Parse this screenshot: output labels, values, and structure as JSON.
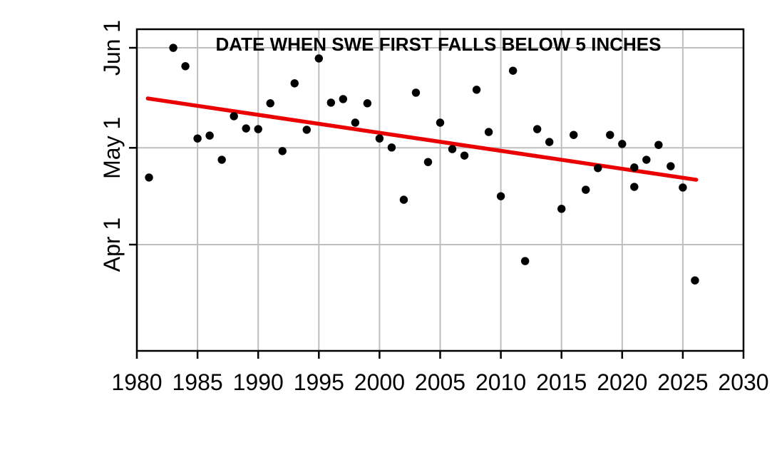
{
  "chart_data": {
    "type": "scatter",
    "title": "DATE WHEN SWE FIRST FALLS BELOW 5 INCHES",
    "x_axis": {
      "min": 1980,
      "max": 2030,
      "tick_step": 5,
      "tick_labels": [
        "1980",
        "1985",
        "1990",
        "1995",
        "2000",
        "2005",
        "2010",
        "2015",
        "2020",
        "2025",
        "2030"
      ],
      "tick_years": [
        1980,
        1985,
        1990,
        1995,
        2000,
        2005,
        2010,
        2015,
        2020,
        2025,
        2030
      ]
    },
    "y_axis": {
      "tick_labels": [
        "Jun 1",
        "May 1",
        "Apr 1"
      ],
      "tick_days_after_apr1": [
        61,
        30,
        0
      ]
    },
    "grid": true,
    "legend": "none",
    "points": [
      {
        "year": 1981,
        "days_after_apr1": 20.8,
        "date": "Apr 22"
      },
      {
        "year": 1983,
        "days_after_apr1": 61.0,
        "date": "Jun 1"
      },
      {
        "year": 1984,
        "days_after_apr1": 55.3,
        "date": "May 26"
      },
      {
        "year": 1985,
        "days_after_apr1": 32.9,
        "date": "May 4"
      },
      {
        "year": 1986,
        "days_after_apr1": 33.8,
        "date": "May 5"
      },
      {
        "year": 1987,
        "days_after_apr1": 26.3,
        "date": "Apr 27"
      },
      {
        "year": 1988,
        "days_after_apr1": 39.8,
        "date": "May 11"
      },
      {
        "year": 1989,
        "days_after_apr1": 36.0,
        "date": "May 7"
      },
      {
        "year": 1990,
        "days_after_apr1": 35.8,
        "date": "May 7"
      },
      {
        "year": 1991,
        "days_after_apr1": 43.8,
        "date": "May 15"
      },
      {
        "year": 1992,
        "days_after_apr1": 29.0,
        "date": "Apr 30"
      },
      {
        "year": 1993,
        "days_after_apr1": 50.0,
        "date": "May 21"
      },
      {
        "year": 1994,
        "days_after_apr1": 35.6,
        "date": "May 7"
      },
      {
        "year": 1995,
        "days_after_apr1": 57.7,
        "date": "May 29"
      },
      {
        "year": 1996,
        "days_after_apr1": 44.0,
        "date": "May 15"
      },
      {
        "year": 1997,
        "days_after_apr1": 45.1,
        "date": "May 16"
      },
      {
        "year": 1998,
        "days_after_apr1": 37.8,
        "date": "May 9"
      },
      {
        "year": 1999,
        "days_after_apr1": 43.8,
        "date": "May 15"
      },
      {
        "year": 2000,
        "days_after_apr1": 32.9,
        "date": "May 4"
      },
      {
        "year": 2001,
        "days_after_apr1": 30.1,
        "date": "May 1"
      },
      {
        "year": 2002,
        "days_after_apr1": 13.9,
        "date": "Apr 15"
      },
      {
        "year": 2003,
        "days_after_apr1": 47.1,
        "date": "May 18"
      },
      {
        "year": 2004,
        "days_after_apr1": 25.6,
        "date": "Apr 27"
      },
      {
        "year": 2005,
        "days_after_apr1": 37.8,
        "date": "May 9"
      },
      {
        "year": 2006,
        "days_after_apr1": 29.6,
        "date": "Apr 30"
      },
      {
        "year": 2007,
        "days_after_apr1": 27.6,
        "date": "Apr 29"
      },
      {
        "year": 2008,
        "days_after_apr1": 48.0,
        "date": "May 19"
      },
      {
        "year": 2009,
        "days_after_apr1": 34.9,
        "date": "May 6"
      },
      {
        "year": 2010,
        "days_after_apr1": 15.0,
        "date": "Apr 16"
      },
      {
        "year": 2011,
        "days_after_apr1": 53.9,
        "date": "May 25"
      },
      {
        "year": 2012,
        "days_after_apr1": -5.1,
        "date": "Mar 27"
      },
      {
        "year": 2013,
        "days_after_apr1": 35.8,
        "date": "May 7"
      },
      {
        "year": 2014,
        "days_after_apr1": 31.8,
        "date": "May 3"
      },
      {
        "year": 2015,
        "days_after_apr1": 11.1,
        "date": "Apr 12"
      },
      {
        "year": 2016,
        "days_after_apr1": 34.0,
        "date": "May 5"
      },
      {
        "year": 2017,
        "days_after_apr1": 17.0,
        "date": "Apr 18"
      },
      {
        "year": 2018,
        "days_after_apr1": 23.7,
        "date": "Apr 25"
      },
      {
        "year": 2019,
        "days_after_apr1": 34.0,
        "date": "May 5"
      },
      {
        "year": 2020,
        "days_after_apr1": 31.2,
        "date": "May 2"
      },
      {
        "year": 2021,
        "days_after_apr1": 23.9,
        "date": "Apr 25"
      },
      {
        "year": 2021,
        "days_after_apr1": 17.9,
        "date": "Apr 19"
      },
      {
        "year": 2022,
        "days_after_apr1": 26.3,
        "date": "Apr 27"
      },
      {
        "year": 2023,
        "days_after_apr1": 30.9,
        "date": "May 2"
      },
      {
        "year": 2024,
        "days_after_apr1": 24.3,
        "date": "Apr 25"
      },
      {
        "year": 2025,
        "days_after_apr1": 17.7,
        "date": "Apr 19"
      },
      {
        "year": 2026,
        "days_after_apr1": -11.1,
        "date": "Mar 21"
      }
    ],
    "trend_line": {
      "type": "linear",
      "x1_year": 1980.9,
      "y1_days_after_apr1": 45.3,
      "x2_year": 2026.1,
      "y2_days_after_apr1": 20.1
    },
    "colors": {
      "point": "#000000",
      "trend": "#EA0000",
      "grid": "#BEBEBE",
      "axis": "#000000",
      "background": "#FFFFFF"
    }
  }
}
